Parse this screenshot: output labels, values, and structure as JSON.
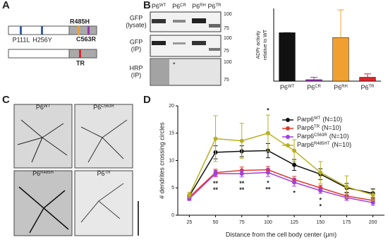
{
  "panel_labels": [
    "A",
    "B",
    "C",
    "D"
  ],
  "diagram": {
    "mutations": [
      "P111L",
      "H256Y",
      "R485H",
      "C563R"
    ],
    "truncation": "TR"
  },
  "blot": {
    "lanes": [
      {
        "base": "P6",
        "sup": "WT",
        "color": "#111111"
      },
      {
        "base": "P6",
        "sup": "CR",
        "color": "#9b35b5"
      },
      {
        "base": "P6",
        "sup": "RH",
        "color": "#f0a030"
      },
      {
        "base": "P6",
        "sup": "TR",
        "color": "#d9262b"
      }
    ],
    "rows": [
      [
        "GFP",
        "(lysate)"
      ],
      [
        "GFP",
        "(IP)"
      ],
      [
        "HRP",
        "(IP)"
      ]
    ],
    "markers": [
      [
        "100",
        "75"
      ],
      [
        "100",
        "75"
      ],
      [
        "100",
        "75"
      ]
    ],
    "asterisk": "*"
  },
  "micrographs": [
    {
      "base": "P6",
      "sup": "WT",
      "color": "#111111"
    },
    {
      "base": "P6",
      "sup": "C563R",
      "color": "#9b35b5"
    },
    {
      "base": "P6",
      "sup": "R485H",
      "color": "#f0a030"
    },
    {
      "base": "P6",
      "sup": "TR",
      "color": "#d9262b"
    }
  ],
  "chart_data": [
    {
      "type": "bar",
      "ylabel": [
        "ADPr  activity",
        "relative to WT"
      ],
      "categories": [
        "P6",
        "P6",
        "P6",
        "P6"
      ],
      "category_sups": [
        "WT",
        "CR",
        "RH",
        "TR"
      ],
      "values": [
        100,
        3,
        90,
        8
      ],
      "errors": [
        0,
        5,
        57,
        7
      ],
      "colors": [
        "#111111",
        "#9b35b5",
        "#f0a030",
        "#d9262b"
      ],
      "ylim": [
        0,
        150
      ]
    },
    {
      "type": "line",
      "xlabel": "Distance from the cell body center (μm)",
      "ylabel": "# dendrites crossing circles",
      "x": [
        25,
        50,
        75,
        100,
        125,
        150,
        175,
        200
      ],
      "xlim": [
        14,
        211
      ],
      "xticks": [
        25,
        50,
        75,
        100,
        125,
        150,
        175,
        200
      ],
      "ylim": [
        0,
        20
      ],
      "yticks": [
        0,
        5,
        10,
        15,
        20
      ],
      "series": [
        {
          "name": "Parp6",
          "sup": "WT",
          "n": "(N=10)",
          "color": "#111111",
          "values": [
            3.5,
            11.5,
            11.7,
            11.8,
            9.2,
            7.5,
            5.0,
            4.0
          ],
          "errors": [
            0.3,
            1.2,
            1.0,
            1.3,
            1.0,
            1.0,
            0.8,
            0.8
          ]
        },
        {
          "name": "Parp6",
          "sup": "TR",
          "n": "(N=10)",
          "color": "#e0392b",
          "values": [
            3.3,
            7.8,
            8.2,
            8.3,
            6.5,
            5.0,
            3.5,
            2.7
          ],
          "errors": [
            0.3,
            0.6,
            0.6,
            0.6,
            0.6,
            0.5,
            0.5,
            0.4
          ]
        },
        {
          "name": "Parp6",
          "sup": "C563R",
          "n": "(N=10)",
          "color": "#a040e0",
          "values": [
            3.0,
            7.6,
            7.6,
            7.8,
            6.0,
            4.5,
            3.2,
            2.3
          ],
          "errors": [
            0.3,
            0.6,
            0.6,
            0.7,
            0.7,
            0.5,
            0.5,
            0.5
          ]
        },
        {
          "name": "Parp6",
          "sup": "R485HT",
          "n": "(N=10)",
          "color": "#b8b020",
          "values": [
            3.7,
            14.0,
            13.6,
            15.0,
            11.8,
            7.8,
            5.2,
            3.7
          ],
          "errors": [
            0.5,
            4.2,
            3.2,
            3.3,
            2.0,
            2.0,
            2.0,
            1.0
          ]
        }
      ],
      "annotations": [
        {
          "x": 100,
          "text": "*",
          "color": "#f0a030",
          "above": true
        },
        {
          "x": 50,
          "text": "**",
          "color": "#a0522d"
        },
        {
          "x": 75,
          "text": "**",
          "color": "#a0522d"
        },
        {
          "x": 100,
          "text": "*",
          "color": "#a0522d"
        },
        {
          "x": 50,
          "text": "**",
          "color": "#7030c0"
        },
        {
          "x": 75,
          "text": "**",
          "color": "#7030c0"
        },
        {
          "x": 100,
          "text": "**",
          "color": "#7030c0"
        },
        {
          "x": 125,
          "text": "*",
          "color": "#7030c0"
        },
        {
          "x": 150,
          "text": "*",
          "color": "#a0522d"
        },
        {
          "x": 150,
          "text": "*",
          "color": "#a0522d"
        }
      ]
    }
  ]
}
